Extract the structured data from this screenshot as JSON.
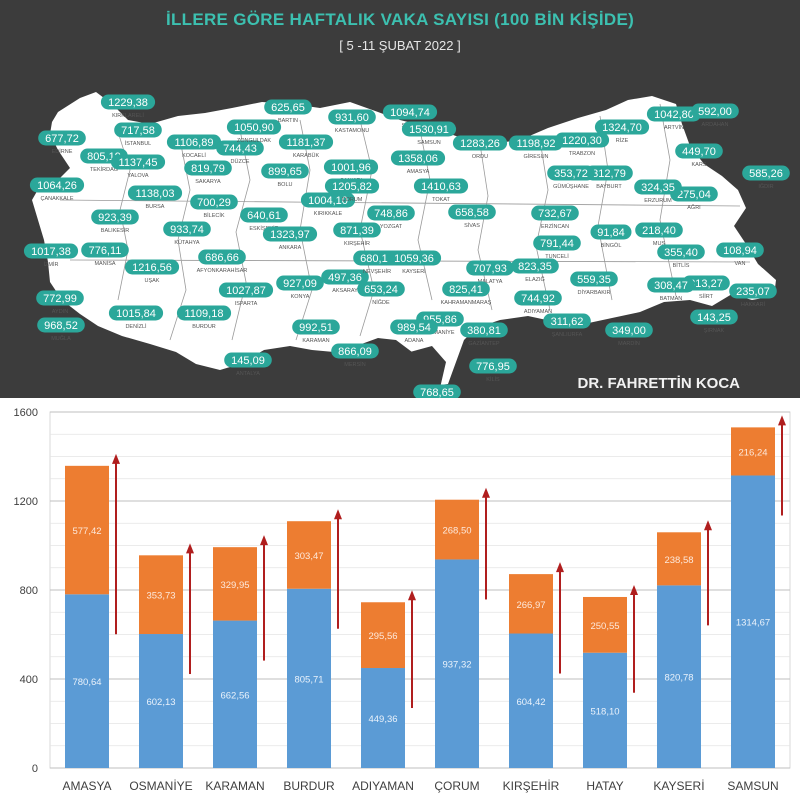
{
  "map": {
    "title": "İLLERE GÖRE HAFTALIK VAKA SAYISI (100 BİN KİŞİDE)",
    "subtitle": "[ 5 -11 ŞUBAT 2022 ]",
    "author": "DR. FAHRETTİN KOCA",
    "colors": {
      "background": "#3c3c3c",
      "land": "#ffffff",
      "badge": "#2ba79a",
      "title": "#3cc0b0"
    },
    "cities": [
      {
        "name": "KIRKLARELİ",
        "value": "1229,38"
      },
      {
        "name": "EDİRNE",
        "value": "677,72"
      },
      {
        "name": "TEKİRDAĞ",
        "value": "805,19"
      },
      {
        "name": "İSTANBUL",
        "value": "717,58"
      },
      {
        "name": "KOCAELİ",
        "value": "1106,89"
      },
      {
        "name": "YALOVA",
        "value": "1137,45"
      },
      {
        "name": "SAKARYA",
        "value": "819,79"
      },
      {
        "name": "DÜZCE",
        "value": "744,43"
      },
      {
        "name": "ZONGULDAK",
        "value": "1050,90"
      },
      {
        "name": "BARTIN",
        "value": "625,65"
      },
      {
        "name": "KARABÜK",
        "value": "1181,37"
      },
      {
        "name": "KASTAMONU",
        "value": "931,60"
      },
      {
        "name": "SİNOP",
        "value": "1094,74"
      },
      {
        "name": "SAMSUN",
        "value": "1530,91"
      },
      {
        "name": "ORDU",
        "value": "1283,26"
      },
      {
        "name": "GİRESUN",
        "value": "1198,92"
      },
      {
        "name": "TRABZON",
        "value": "1220,30"
      },
      {
        "name": "RİZE",
        "value": "1324,70"
      },
      {
        "name": "ARTVİN",
        "value": "1042,80"
      },
      {
        "name": "ARDAHAN",
        "value": "592,00"
      },
      {
        "name": "KARS",
        "value": "449,70"
      },
      {
        "name": "IĞDIR",
        "value": "585,26"
      },
      {
        "name": "AĞRI",
        "value": "275,04"
      },
      {
        "name": "ERZURUM",
        "value": "324,35"
      },
      {
        "name": "BAYBURT",
        "value": "312,79"
      },
      {
        "name": "GÜMÜŞHANE",
        "value": "353,72"
      },
      {
        "name": "ERZİNCAN",
        "value": "732,67"
      },
      {
        "name": "TUNCELİ",
        "value": "791,44"
      },
      {
        "name": "BİNGÖL",
        "value": "91,84"
      },
      {
        "name": "MUŞ",
        "value": "218,40"
      },
      {
        "name": "BİTLİS",
        "value": "355,40"
      },
      {
        "name": "VAN",
        "value": "108,94"
      },
      {
        "name": "HAKKARİ",
        "value": "235,07"
      },
      {
        "name": "ŞIRNAK",
        "value": "143,25"
      },
      {
        "name": "SİİRT",
        "value": "313,27"
      },
      {
        "name": "BATMAN",
        "value": "308,47"
      },
      {
        "name": "MARDİN",
        "value": "349,00"
      },
      {
        "name": "DİYARBAKIR",
        "value": "559,35"
      },
      {
        "name": "ELAZIĞ",
        "value": "823,35"
      },
      {
        "name": "MALATYA",
        "value": "707,93"
      },
      {
        "name": "ADIYAMAN",
        "value": "744,92"
      },
      {
        "name": "ŞANLIURFA",
        "value": "311,62"
      },
      {
        "name": "GAZİANTEP",
        "value": "380,81"
      },
      {
        "name": "KİLİS",
        "value": "776,95"
      },
      {
        "name": "HATAY",
        "value": "768,65"
      },
      {
        "name": "OSMANİYE",
        "value": "955,86"
      },
      {
        "name": "ADANA",
        "value": "989,54"
      },
      {
        "name": "KAHRAMANMARAŞ",
        "value": "825,41"
      },
      {
        "name": "MERSİN",
        "value": "866,09"
      },
      {
        "name": "KARAMAN",
        "value": "992,51"
      },
      {
        "name": "ANTALYA",
        "value": "145,09"
      },
      {
        "name": "MUĞLA",
        "value": "968,52"
      },
      {
        "name": "AYDIN",
        "value": "772,99"
      },
      {
        "name": "DENİZLİ",
        "value": "1015,84"
      },
      {
        "name": "BURDUR",
        "value": "1109,18"
      },
      {
        "name": "ISPARTA",
        "value": "1027,87"
      },
      {
        "name": "İZMİR",
        "value": "1017,38"
      },
      {
        "name": "MANİSA",
        "value": "776,11"
      },
      {
        "name": "UŞAK",
        "value": "1216,56"
      },
      {
        "name": "AFYONKARAHİSAR",
        "value": "686,66"
      },
      {
        "name": "KÜTAHYA",
        "value": "933,74"
      },
      {
        "name": "BALIKESİR",
        "value": "923,39"
      },
      {
        "name": "ÇANAKKALE",
        "value": "1064,26"
      },
      {
        "name": "BURSA",
        "value": "1138,03"
      },
      {
        "name": "BİLECİK",
        "value": "700,29"
      },
      {
        "name": "ESKİŞEHİR",
        "value": "640,61"
      },
      {
        "name": "BOLU",
        "value": "899,65"
      },
      {
        "name": "ÇANKIRI",
        "value": "1001,96"
      },
      {
        "name": "ANKARA",
        "value": "1323,97"
      },
      {
        "name": "KONYA",
        "value": "927,09"
      },
      {
        "name": "AKSARAY",
        "value": "497,36"
      },
      {
        "name": "NİĞDE",
        "value": "653,24"
      },
      {
        "name": "NEVŞEHİR",
        "value": "680,19"
      },
      {
        "name": "KAYSERİ",
        "value": "1059,36"
      },
      {
        "name": "KIRŞEHİR",
        "value": "871,39"
      },
      {
        "name": "KIRIKKALE",
        "value": "1004,10"
      },
      {
        "name": "YOZGAT",
        "value": "748,86"
      },
      {
        "name": "ÇORUM",
        "value": "1205,82"
      },
      {
        "name": "AMASYA",
        "value": "1358,06"
      },
      {
        "name": "TOKAT",
        "value": "1410,63"
      },
      {
        "name": "SİVAS",
        "value": "658,58"
      }
    ]
  },
  "chart_data": {
    "type": "bar",
    "stacked": true,
    "categories": [
      "AMASYA",
      "OSMANİYE",
      "KARAMAN",
      "BURDUR",
      "ADIYAMAN",
      "ÇORUM",
      "KIRŞEHİR",
      "HATAY",
      "KAYSERİ",
      "SAMSUN"
    ],
    "series": [
      {
        "values": [
          780.64,
          602.13,
          662.56,
          805.71,
          449.36,
          937.32,
          604.42,
          518.1,
          820.78,
          1314.67
        ],
        "labels": [
          "780,64",
          "602,13",
          "662,56",
          "805,71",
          "449,36",
          "937,32",
          "604,42",
          "518,10",
          "820,78",
          "1314,67"
        ],
        "color": "#5b9bd5"
      },
      {
        "values": [
          577.42,
          353.73,
          329.95,
          303.47,
          295.56,
          268.5,
          266.97,
          250.55,
          238.58,
          216.24
        ],
        "labels": [
          "577,42",
          "353,73",
          "329,95",
          "303,47",
          "295,56",
          "268,50",
          "266,97",
          "250,55",
          "238,58",
          "216,24"
        ],
        "color": "#ed7d31"
      }
    ],
    "ylim": [
      0,
      1600
    ],
    "yticks": [
      0,
      400,
      800,
      1200,
      1600
    ],
    "grid": true,
    "arrow_color": "#b01e1e",
    "title": "",
    "xlabel": "",
    "ylabel": ""
  }
}
